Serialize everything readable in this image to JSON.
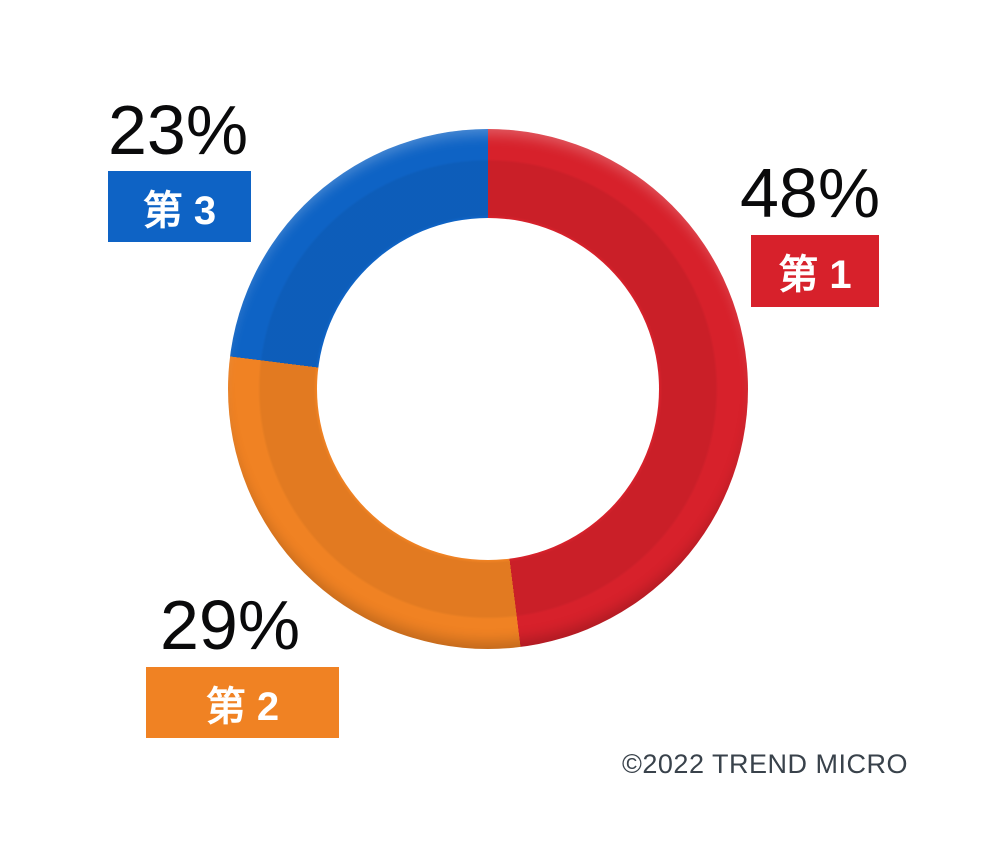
{
  "chart_data": {
    "type": "pie",
    "donut": true,
    "start_angle_deg": 0,
    "direction": "clockwise",
    "slices": [
      {
        "rank": 1,
        "label": "第 1",
        "value_pct": 48,
        "value_label": "48%",
        "color": "#d7212b"
      },
      {
        "rank": 2,
        "label": "第 2",
        "value_pct": 29,
        "value_label": "29%",
        "color": "#f08223"
      },
      {
        "rank": 3,
        "label": "第 3",
        "value_pct": 23,
        "value_label": "23%",
        "color": "#0e63c5"
      }
    ],
    "title": "",
    "legend_position": "callout-labels-around-donut"
  },
  "colors": {
    "background": "#ffffff",
    "percent_text": "#0a0a0b",
    "badge_text": "#ffffff",
    "copyright_text": "#39424b"
  },
  "footer": {
    "copyright": "©2022 TREND MICRO"
  }
}
